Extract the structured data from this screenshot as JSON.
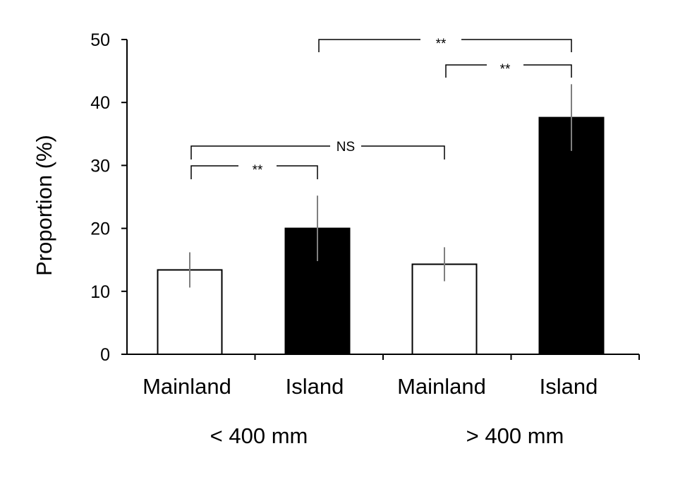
{
  "chart_data": {
    "type": "bar",
    "ylabel": "Proportion (%)",
    "ylim": [
      0,
      50
    ],
    "yticks": [
      "0",
      "10",
      "20",
      "30",
      "40",
      "50"
    ],
    "categories": [
      "Mainland",
      "Island",
      "Mainland",
      "Island"
    ],
    "groups": [
      "< 400 mm",
      "> 400 mm"
    ],
    "bars": [
      {
        "category": "Mainland",
        "group": "< 400 mm",
        "value": 13.4,
        "error": 2.8,
        "fill": "#ffffff"
      },
      {
        "category": "Island",
        "group": "< 400 mm",
        "value": 20.0,
        "error": 5.2,
        "fill": "#000000"
      },
      {
        "category": "Mainland",
        "group": "> 400 mm",
        "value": 14.3,
        "error": 2.7,
        "fill": "#ffffff"
      },
      {
        "category": "Island",
        "group": "> 400 mm",
        "value": 37.6,
        "error": 5.3,
        "fill": "#000000"
      }
    ],
    "error_bar_color": "#7f7f7f",
    "comparisons": [
      {
        "from": 0,
        "to": 1,
        "label": "**"
      },
      {
        "from": 0,
        "to": 2,
        "label": "NS"
      },
      {
        "from": 2,
        "to": 3,
        "label": "**"
      },
      {
        "from": 1,
        "to": 3,
        "label": "**"
      }
    ],
    "grid": false,
    "legend": "none"
  }
}
